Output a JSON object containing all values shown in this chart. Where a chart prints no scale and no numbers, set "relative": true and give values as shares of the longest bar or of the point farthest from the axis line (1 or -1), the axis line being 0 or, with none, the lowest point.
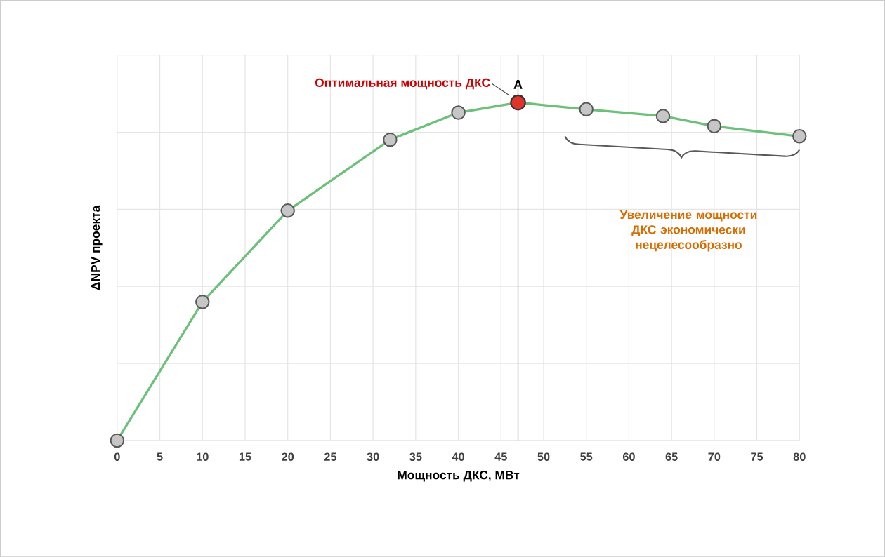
{
  "chart_data": {
    "type": "line",
    "relative": true,
    "xlabel": "Мощность ДКС, МВт",
    "ylabel": "ΔNPV проекта",
    "x": [
      0,
      10,
      20,
      32,
      40,
      47,
      55,
      64,
      70,
      80
    ],
    "series": [
      {
        "type": "line",
        "color": "#6cc07a",
        "values": [
          0,
          0.41,
          0.68,
          0.89,
          0.97,
          1,
          0.98,
          0.96,
          0.93,
          0.9
        ]
      },
      {
        "type": "scatter",
        "color": "#e0332b",
        "x": [
          47
        ],
        "values": [
          1
        ]
      }
    ],
    "xlim": [
      0,
      80
    ],
    "xticks": [
      0,
      5,
      10,
      15,
      20,
      25,
      30,
      35,
      40,
      45,
      50,
      55,
      60,
      65,
      70,
      75,
      80
    ],
    "grid": true,
    "marker": "circle",
    "ref_lines": [
      {
        "axis": "x",
        "value": 47,
        "color": "#c8c8d8"
      }
    ],
    "annotations": [
      {
        "text": "Оптимальная мощность ДКС",
        "x": 47,
        "y": 1
      },
      {
        "text": "A",
        "x": 47,
        "y": 1
      },
      "Увеличение мощности ДКС экономически нецелесообразно"
    ]
  }
}
